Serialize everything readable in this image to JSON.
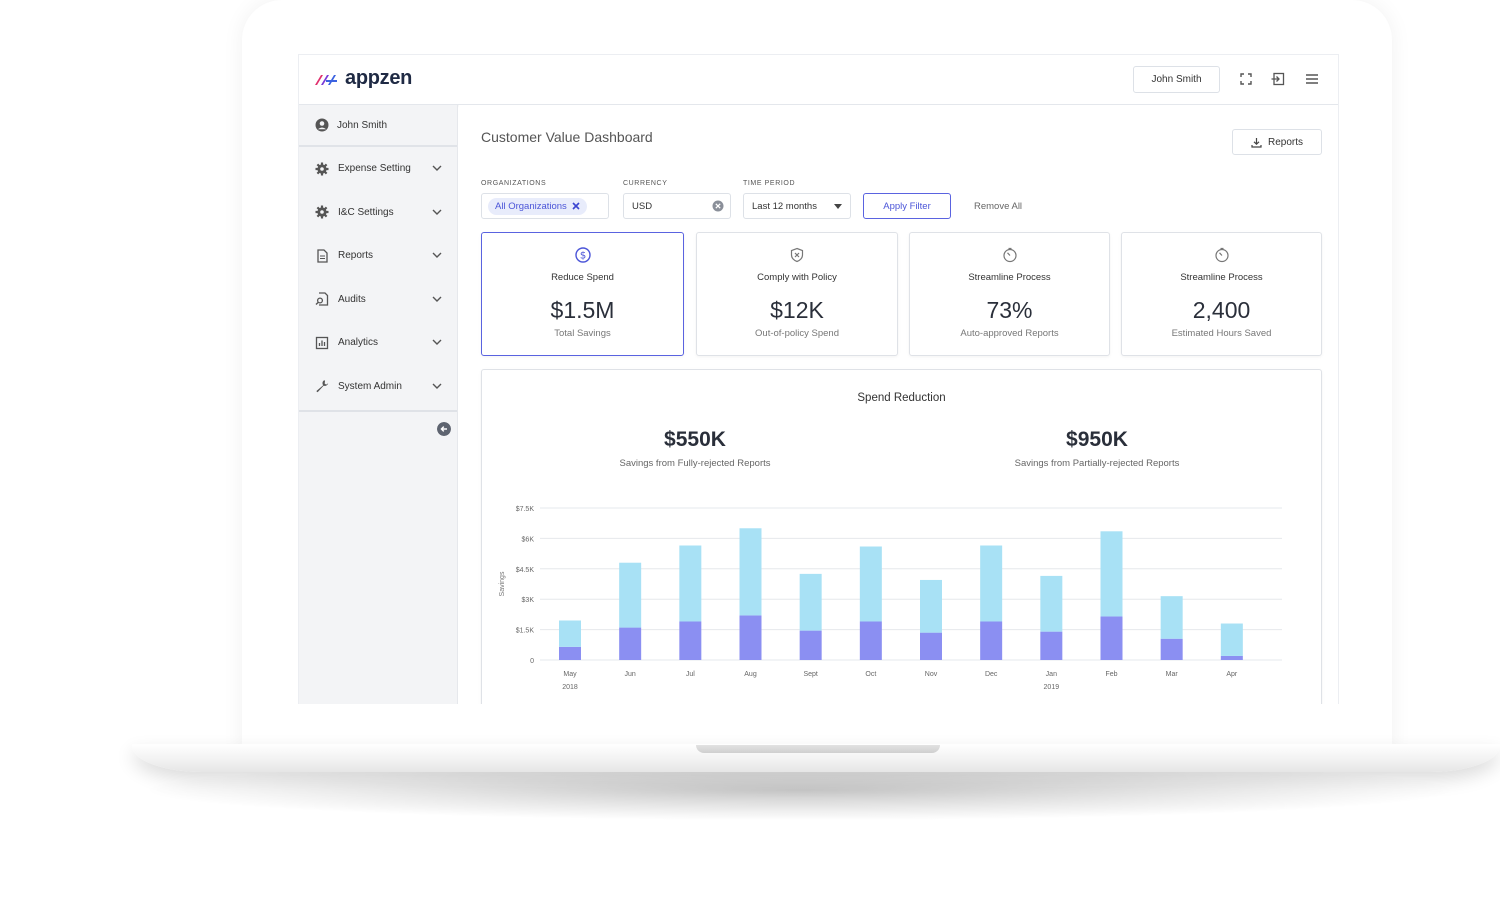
{
  "brand": {
    "name": "appzen"
  },
  "header": {
    "user_label": "John Smith"
  },
  "sidebar": {
    "user": "John Smith",
    "items": [
      {
        "label": "Expense Setting",
        "icon": "gear-icon"
      },
      {
        "label": "I&C Settings",
        "icon": "gear-icon"
      },
      {
        "label": "Reports",
        "icon": "document-icon"
      },
      {
        "label": "Audits",
        "icon": "audit-search-icon"
      },
      {
        "label": "Analytics",
        "icon": "analytics-icon"
      },
      {
        "label": "System Admin",
        "icon": "wrench-icon"
      }
    ]
  },
  "main": {
    "title": "Customer Value Dashboard",
    "reports_button": "Reports",
    "filters": {
      "organizations_label": "ORGANIZATIONS",
      "organizations_chip": "All Organizations",
      "currency_label": "CURRENCY",
      "currency_value": "USD",
      "time_label": "TIME PERIOD",
      "time_value": "Last 12 months",
      "apply": "Apply Filter",
      "remove_all": "Remove All"
    },
    "kpis": [
      {
        "title": "Reduce Spend",
        "value": "$1.5M",
        "sub": "Total Savings",
        "icon": "dollar-circle-icon"
      },
      {
        "title": "Comply with Policy",
        "value": "$12K",
        "sub": "Out-of-policy Spend",
        "icon": "shield-x-icon"
      },
      {
        "title": "Streamline Process",
        "value": "73%",
        "sub": "Auto-approved Reports",
        "icon": "timer-icon"
      },
      {
        "title": "Streamline Process",
        "value": "2,400",
        "sub": "Estimated Hours Saved",
        "icon": "timer-icon"
      }
    ],
    "chart_card": {
      "title": "Spend Reduction",
      "left_value": "$550K",
      "left_sub": "Savings from Fully-rejected Reports",
      "right_value": "$950K",
      "right_sub": "Savings from Partially-rejected Reports"
    }
  },
  "colors": {
    "accent": "#5a63e0",
    "bar_dark": "#8b8ff2",
    "bar_light": "#a8e1f5"
  },
  "chart_data": {
    "type": "bar",
    "stacked": true,
    "title": "Spend Reduction",
    "ylabel": "Savings",
    "xlabel": "",
    "ylim": [
      0,
      7500
    ],
    "yticks": [
      "0",
      "$1.5K",
      "$3K",
      "$4.5K",
      "$6K",
      "$7.5K"
    ],
    "categories": [
      "May",
      "Jun",
      "Jul",
      "Aug",
      "Sept",
      "Oct",
      "Nov",
      "Dec",
      "Jan",
      "Feb",
      "Mar",
      "Apr"
    ],
    "year_labels": {
      "May": "2018",
      "Jan": "2019"
    },
    "series": [
      {
        "values": [
          650,
          1600,
          1900,
          2200,
          1450,
          1900,
          1350,
          1900,
          1400,
          2150,
          1050,
          200
        ]
      },
      {
        "values": [
          1300,
          3200,
          3750,
          4300,
          2800,
          3700,
          2600,
          3750,
          2750,
          4200,
          2100,
          1600
        ]
      }
    ]
  }
}
